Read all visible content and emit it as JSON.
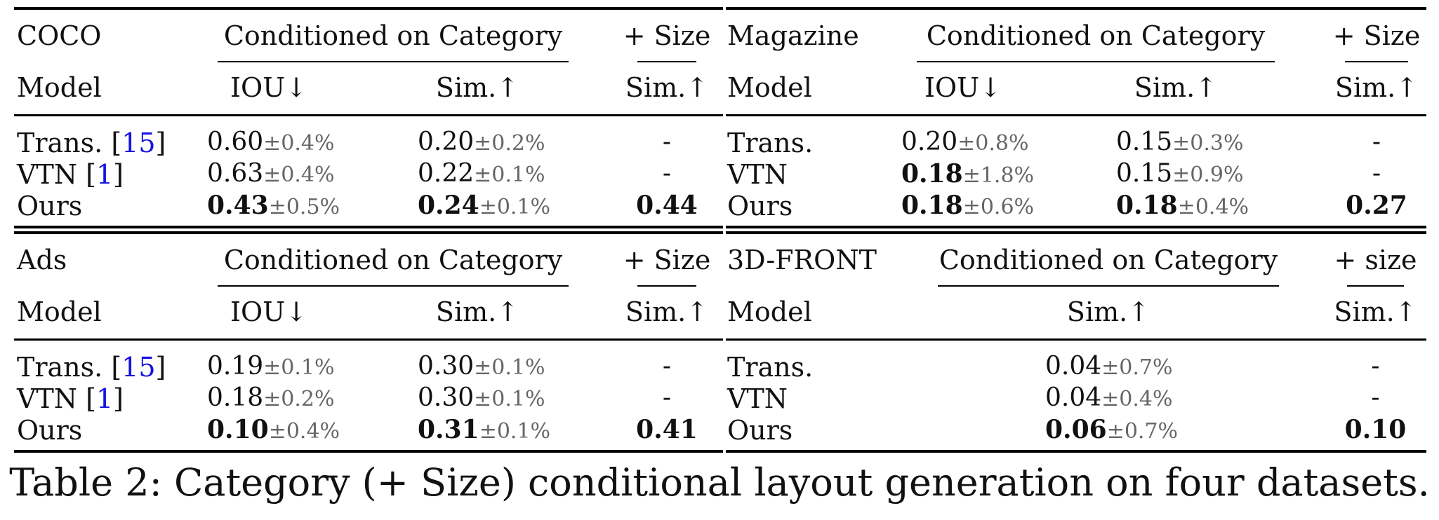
{
  "panels": [
    {
      "dataset": "COCO",
      "group_header": "Conditioned on Category",
      "size_header": "+ Size",
      "model_header": "Model",
      "cols": [
        "IOU↓",
        "Sim.↑"
      ],
      "size_col": "Sim.↑",
      "rows": [
        {
          "model": "Trans.",
          "ref": "15",
          "v1": "0.60",
          "pm1": "±0.4%",
          "v2": "0.20",
          "pm2": "±0.2%",
          "size": "-"
        },
        {
          "model": "VTN",
          "ref": "1",
          "v1": "0.63",
          "pm1": "±0.4%",
          "v2": "0.22",
          "pm2": "±0.1%",
          "size": "-"
        },
        {
          "model": "Ours",
          "ref": "",
          "v1": "0.43",
          "pm1": "±0.5%",
          "v2": "0.24",
          "pm2": "±0.1%",
          "size": "0.44"
        }
      ]
    },
    {
      "dataset": "Magazine",
      "group_header": "Conditioned on Category",
      "size_header": "+ Size",
      "model_header": "Model",
      "cols": [
        "IOU↓",
        "Sim.↑"
      ],
      "size_col": "Sim.↑",
      "rows": [
        {
          "model": "Trans.",
          "ref": "",
          "v1": "0.20",
          "pm1": "±0.8%",
          "v2": "0.15",
          "pm2": "±0.3%",
          "size": "-"
        },
        {
          "model": "VTN",
          "ref": "",
          "v1": "0.18",
          "pm1": "±1.8%",
          "v2": "0.15",
          "pm2": "±0.9%",
          "size": "-"
        },
        {
          "model": "Ours",
          "ref": "",
          "v1": "0.18",
          "pm1": "±0.6%",
          "v2": "0.18",
          "pm2": "±0.4%",
          "size": "0.27"
        }
      ]
    },
    {
      "dataset": "Ads",
      "group_header": "Conditioned on Category",
      "size_header": "+ Size",
      "model_header": "Model",
      "cols": [
        "IOU↓",
        "Sim.↑"
      ],
      "size_col": "Sim.↑",
      "rows": [
        {
          "model": "Trans.",
          "ref": "15",
          "v1": "0.19",
          "pm1": "±0.1%",
          "v2": "0.30",
          "pm2": "±0.1%",
          "size": "-"
        },
        {
          "model": "VTN",
          "ref": "1",
          "v1": "0.18",
          "pm1": "±0.2%",
          "v2": "0.30",
          "pm2": "±0.1%",
          "size": "-"
        },
        {
          "model": "Ours",
          "ref": "",
          "v1": "0.10",
          "pm1": "±0.4%",
          "v2": "0.31",
          "pm2": "±0.1%",
          "size": "0.41"
        }
      ]
    },
    {
      "dataset": "3D-FRONT",
      "group_header": "Conditioned on Category",
      "size_header": "+ size",
      "model_header": "Model",
      "cols": [
        "Sim.↑"
      ],
      "size_col": "Sim.↑",
      "rows": [
        {
          "model": "Trans.",
          "ref": "",
          "v1": "0.04",
          "pm1": "±0.7%",
          "size": "-"
        },
        {
          "model": "VTN",
          "ref": "",
          "v1": "0.04",
          "pm1": "±0.4%",
          "size": "-"
        },
        {
          "model": "Ours",
          "ref": "",
          "v1": "0.06",
          "pm1": "±0.7%",
          "size": "0.10"
        }
      ]
    }
  ],
  "caption": "Table 2: Category (+ Size) conditional layout generation on four datasets."
}
